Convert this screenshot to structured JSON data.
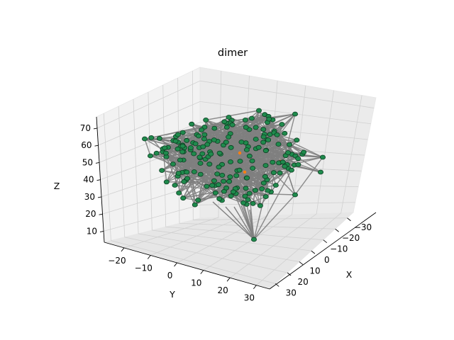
{
  "chart_data": {
    "type": "3d-network",
    "title": "dimer",
    "xlabel": "X",
    "ylabel": "Y",
    "zlabel": "Z",
    "x_ticks": [
      "30",
      "20",
      "10",
      "0",
      "−10",
      "−20",
      "−30"
    ],
    "y_ticks": [
      "−20",
      "−10",
      "0",
      "10",
      "20",
      "30"
    ],
    "z_ticks": [
      "70",
      "60",
      "50",
      "40",
      "30",
      "20",
      "10"
    ],
    "xlim": [
      -35,
      35
    ],
    "ylim": [
      -28,
      35
    ],
    "zlim": [
      8,
      75
    ],
    "grid": true,
    "colors": {
      "node_fill": "#1f8a4c",
      "node_edge": "#0d3d22",
      "edge": "#808080",
      "highlight": "#ff7f0e"
    }
  }
}
